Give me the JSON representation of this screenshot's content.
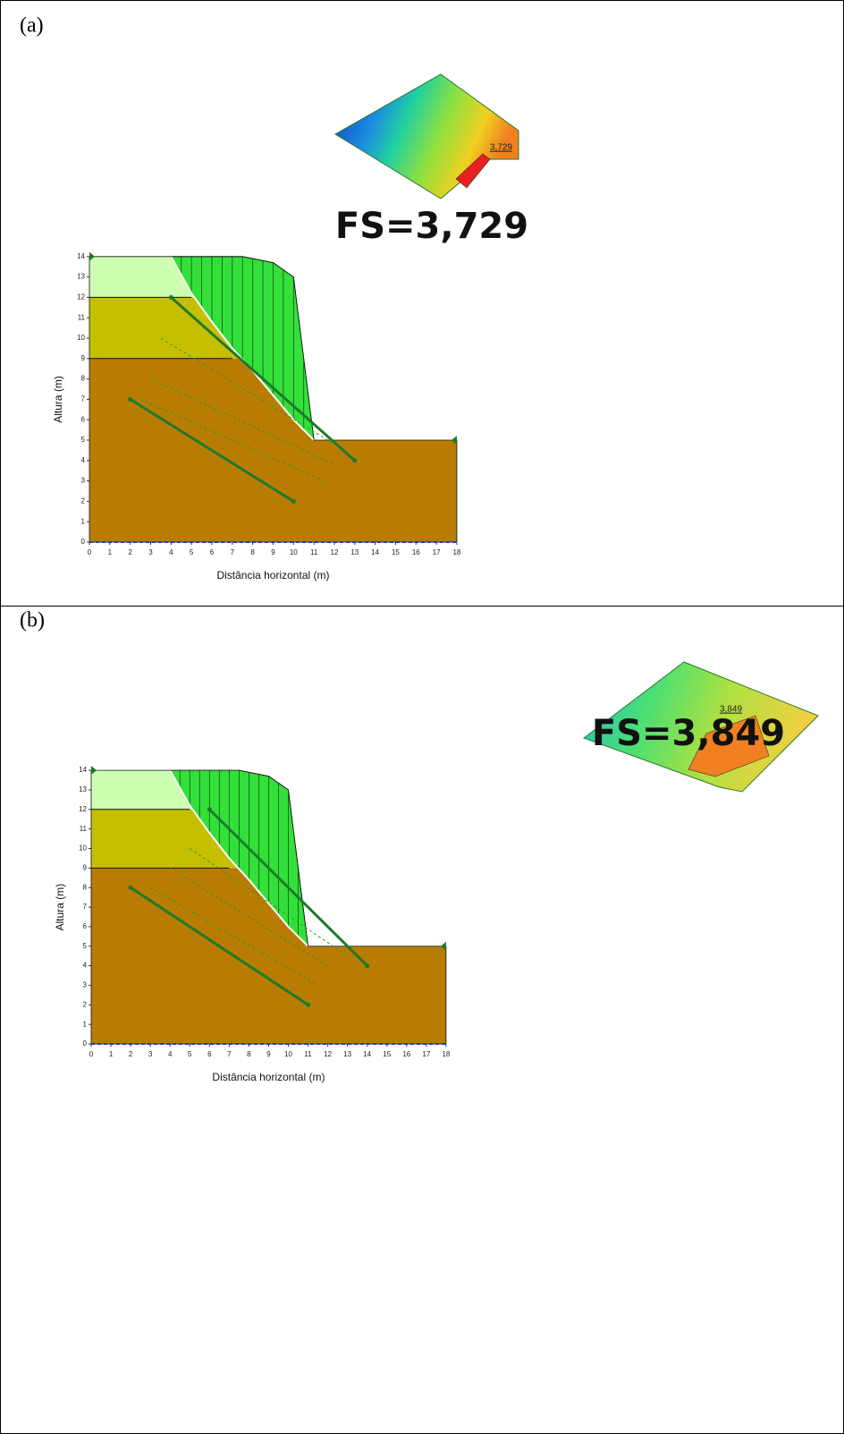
{
  "panels": [
    {
      "label": "(a)",
      "factor_of_safety": "FS=3,729",
      "contour_label": "3,729",
      "y_axis_label": "Altura (m)",
      "x_axis_label": "Distância horizontal (m)",
      "xticks": [
        0,
        1,
        2,
        3,
        4,
        5,
        6,
        7,
        8,
        9,
        10,
        11,
        12,
        13,
        14,
        15,
        16,
        17,
        18
      ],
      "yticks": [
        0,
        1,
        2,
        3,
        4,
        5,
        6,
        7,
        8,
        9,
        10,
        11,
        12,
        13,
        14
      ]
    },
    {
      "label": "(b)",
      "factor_of_safety": "FS=3,849",
      "contour_label": "3,849",
      "y_axis_label": "Altura (m)",
      "x_axis_label": "Distância horizontal (m)",
      "xticks": [
        0,
        1,
        2,
        3,
        4,
        5,
        6,
        7,
        8,
        9,
        10,
        11,
        12,
        13,
        14,
        15,
        16,
        17,
        18
      ],
      "yticks": [
        0,
        1,
        2,
        3,
        4,
        5,
        6,
        7,
        8,
        9,
        10,
        11,
        12,
        13,
        14
      ]
    }
  ]
}
